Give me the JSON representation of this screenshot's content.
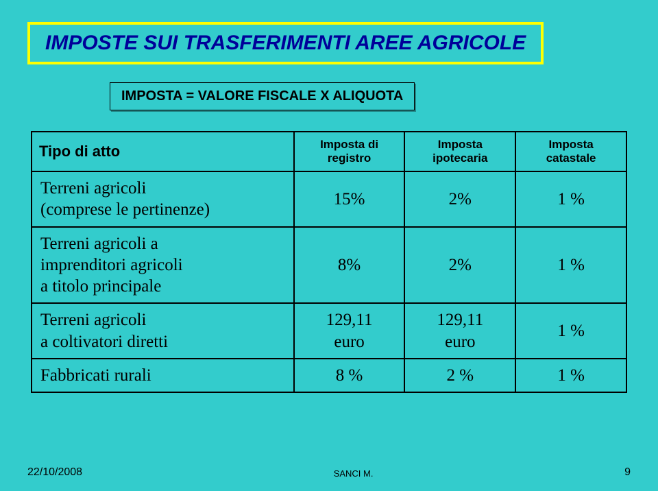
{
  "colors": {
    "background": "#33cccc",
    "title_border": "#ffff00",
    "title_text": "#000099",
    "subtitle_border": "#000000",
    "subtitle_text": "#000000",
    "table_border": "#000000",
    "table_text": "#000000",
    "footer_text": "#000000"
  },
  "title": "IMPOSTE SUI TRASFERIMENTI AREE AGRICOLE",
  "subtitle": "IMPOSTA = VALORE FISCALE X ALIQUOTA",
  "table": {
    "row_header": "Tipo di atto",
    "columns": [
      "Imposta di registro",
      "Imposta ipotecaria",
      "Imposta catastale"
    ],
    "rows": [
      {
        "label": "Terreni agricoli\n(comprese le pertinenze)",
        "values": [
          "15%",
          "2%",
          "1 %"
        ]
      },
      {
        "label": "Terreni agricoli a\nimprenditori agricoli\na titolo principale",
        "values": [
          "8%",
          "2%",
          "1 %"
        ]
      },
      {
        "label": "Terreni agricoli\na coltivatori diretti",
        "values": [
          "129,11\neuro",
          "129,11\neuro",
          "1 %"
        ]
      },
      {
        "label": "Fabbricati rurali",
        "values": [
          "8 %",
          "2 %",
          "1 %"
        ]
      }
    ]
  },
  "footer": {
    "date": "22/10/2008",
    "center": "SANCI M.",
    "page": "9"
  }
}
